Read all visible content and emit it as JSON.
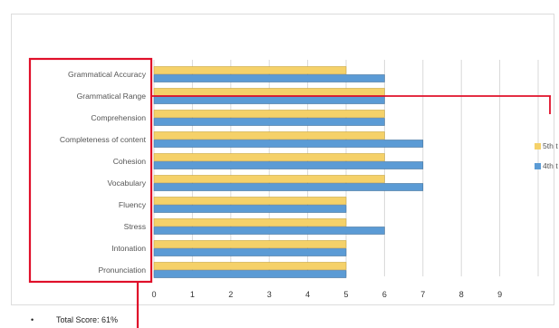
{
  "heading_faint": "",
  "bullet": "Total Score: 61%",
  "chart_data": {
    "type": "bar",
    "orientation": "horizontal",
    "categories": [
      "Grammatical Accuracy",
      "Grammatical Range",
      "Comprehension",
      "Completeness of content",
      "Cohesion",
      "Vocabulary",
      "Fluency",
      "Stress",
      "Intonation",
      "Pronunciation"
    ],
    "series": [
      {
        "name": "5th t",
        "color": "#f5d169",
        "values": [
          5,
          6,
          6,
          6,
          6,
          6,
          5,
          5,
          5,
          5
        ]
      },
      {
        "name": "4th t",
        "color": "#5b9bd5",
        "values": [
          6,
          6,
          6,
          7,
          7,
          7,
          5,
          6,
          5,
          5
        ]
      }
    ],
    "xlim": [
      0,
      10
    ],
    "xticks": [
      "0",
      "1",
      "2",
      "3",
      "4",
      "5",
      "6",
      "7",
      "8",
      "9"
    ],
    "grid": true,
    "legend_position": "right",
    "highlight_color": "#e0102a"
  }
}
